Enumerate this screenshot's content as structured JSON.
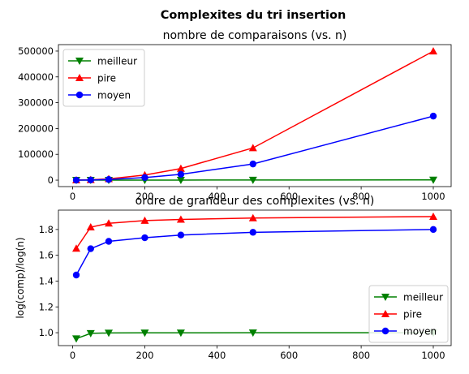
{
  "figure": {
    "suptitle": "Complexites du tri insertion"
  },
  "chart_data": [
    {
      "type": "line",
      "title": "nombre de comparaisons (vs. n)",
      "xlabel": "",
      "ylabel": "",
      "x": [
        10,
        50,
        100,
        200,
        300,
        500,
        1000
      ],
      "xlim": [
        -39.5,
        1049.5
      ],
      "ylim": [
        -25000,
        525000
      ],
      "xticks": [
        0,
        200,
        400,
        600,
        800,
        1000
      ],
      "yticks": [
        0,
        100000,
        200000,
        300000,
        400000,
        500000
      ],
      "grid": false,
      "legend": "top-left",
      "series": [
        {
          "name": "meilleur",
          "color": "#008000",
          "marker": "triangle-down",
          "values": [
            9,
            49,
            99,
            199,
            299,
            499,
            999
          ]
        },
        {
          "name": "pire",
          "color": "#ff0000",
          "marker": "triangle-up",
          "values": [
            45,
            1225,
            4950,
            19900,
            44850,
            124750,
            499500
          ]
        },
        {
          "name": "moyen",
          "color": "#0000ff",
          "marker": "circle",
          "values": [
            28,
            640,
            2600,
            10100,
            22600,
            62600,
            248000
          ]
        }
      ]
    },
    {
      "type": "line",
      "title": "ordre de grandeur des complexites (vs. n)",
      "xlabel": "",
      "ylabel": "log(comp)/log(n)",
      "x": [
        10,
        50,
        100,
        200,
        300,
        500,
        1000
      ],
      "xlim": [
        -39.5,
        1049.5
      ],
      "ylim": [
        0.9,
        1.95
      ],
      "xticks": [
        0,
        200,
        400,
        600,
        800,
        1000
      ],
      "yticks": [
        1.0,
        1.2,
        1.4,
        1.6,
        1.8
      ],
      "grid": false,
      "legend": "bottom-right",
      "series": [
        {
          "name": "meilleur",
          "color": "#008000",
          "marker": "triangle-down",
          "values": [
            0.954,
            0.995,
            0.998,
            0.999,
            0.999,
            1.0,
            1.0
          ]
        },
        {
          "name": "pire",
          "color": "#ff0000",
          "marker": "triangle-up",
          "values": [
            1.653,
            1.818,
            1.848,
            1.869,
            1.878,
            1.889,
            1.9
          ]
        },
        {
          "name": "moyen",
          "color": "#0000ff",
          "marker": "circle",
          "values": [
            1.447,
            1.651,
            1.708,
            1.736,
            1.757,
            1.778,
            1.8
          ]
        }
      ]
    }
  ]
}
